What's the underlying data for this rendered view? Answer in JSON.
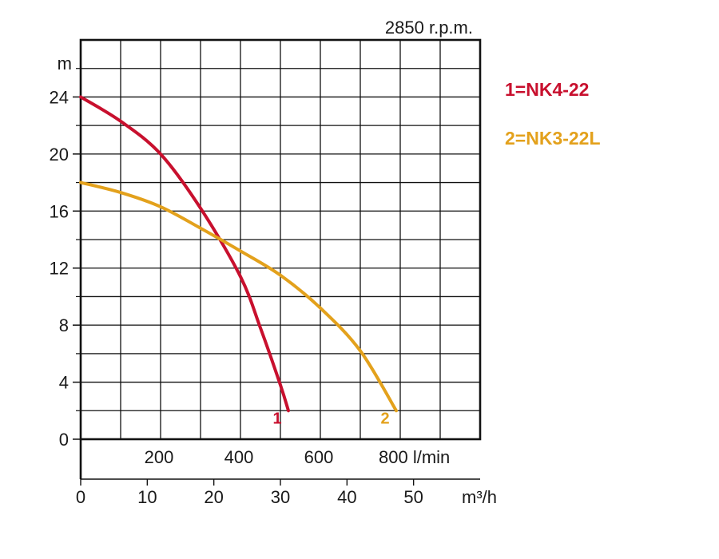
{
  "chart_data": {
    "type": "line",
    "title": "2850 r.p.m.",
    "ylabel": "m",
    "ylim": [
      0,
      28
    ],
    "xlim_lmin": [
      0,
      1000
    ],
    "y_ticks": [
      "0",
      "4",
      "8",
      "12",
      "16",
      "20",
      "24"
    ],
    "x_ticks_lmin": [
      "200",
      "400",
      "600",
      "800 l/min"
    ],
    "x_ticks_m3h": [
      "0",
      "10",
      "20",
      "30",
      "40",
      "50"
    ],
    "x_unit_m3h": "m³/h",
    "grid": true,
    "legend_position": "right",
    "series": [
      {
        "name": "1=NK4-22",
        "label": "1",
        "color": "#c8102e",
        "x": [
          0,
          100,
          200,
          300,
          400,
          450,
          500,
          520
        ],
        "y": [
          24,
          22.3,
          20,
          16.2,
          11.4,
          7.8,
          3.8,
          2
        ]
      },
      {
        "name": "2=NK3-22L",
        "label": "2",
        "color": "#e3a11c",
        "x": [
          0,
          100,
          200,
          300,
          400,
          500,
          600,
          700,
          790
        ],
        "y": [
          18,
          17.3,
          16.3,
          14.8,
          13.2,
          11.5,
          9.2,
          6.2,
          2
        ]
      }
    ]
  }
}
